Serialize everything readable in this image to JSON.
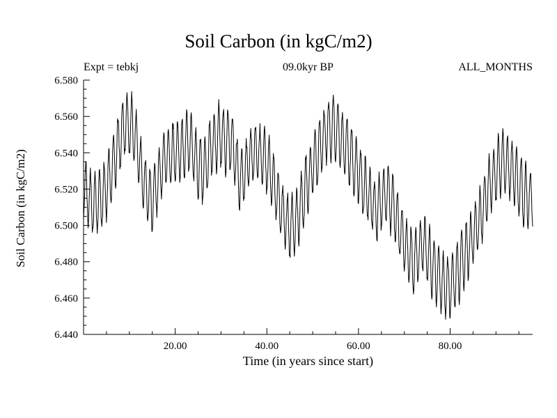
{
  "page": {
    "background": "#ffffff",
    "foreground": "#000000"
  },
  "chart_data": {
    "type": "line",
    "title": "Soil Carbon (in kgC/m2)",
    "annotations": {
      "left": "Expt = tebkj",
      "center": "09.0kyr BP",
      "right": "ALL_MONTHS"
    },
    "xlabel": "Time (in years since start)",
    "ylabel": "Soil Carbon (in kgC/m2)",
    "xlim": [
      0,
      98
    ],
    "ylim": [
      6.44,
      6.58
    ],
    "x_ticks": {
      "values": [
        20,
        40,
        60,
        80
      ],
      "labels": [
        "20.00",
        "40.00",
        "60.00",
        "80.00"
      ],
      "minor_step": 5
    },
    "y_ticks": {
      "values": [
        6.44,
        6.46,
        6.48,
        6.5,
        6.52,
        6.54,
        6.56,
        6.58
      ],
      "labels": [
        "6.440",
        "6.460",
        "6.480",
        "6.500",
        "6.520",
        "6.540",
        "6.560",
        "6.580"
      ],
      "minor_step": 0.005
    },
    "grid": false,
    "legend": "none",
    "line_color": "#000000",
    "series": {
      "name": "soil-carbon-monthly",
      "samples_per_year": 12,
      "seasonal_amplitude": 0.0168,
      "amplitude_jitter": 0.17,
      "noise_amplitude": 0.003,
      "envelope": {
        "t": [
          0,
          2,
          4,
          6,
          8,
          9,
          10,
          11,
          12,
          13,
          14,
          15,
          16,
          17,
          18,
          20,
          22,
          23,
          24,
          25,
          26,
          27,
          28,
          29,
          30,
          31,
          32,
          33,
          34,
          35,
          36,
          37,
          38,
          39,
          40,
          41,
          42,
          43,
          44,
          45,
          46,
          47,
          48,
          49,
          50,
          51,
          52,
          53,
          54,
          55,
          56,
          57,
          58,
          59,
          60,
          61,
          62,
          63,
          64,
          65,
          66,
          67,
          68,
          69,
          70,
          71,
          72,
          73,
          74,
          75,
          76,
          77,
          78,
          79,
          80,
          81,
          82,
          83,
          84,
          85,
          86,
          87,
          88,
          89,
          90,
          91,
          92,
          93,
          94,
          95,
          96,
          97,
          98
        ],
        "v": [
          6.52,
          6.512,
          6.515,
          6.528,
          6.548,
          6.555,
          6.556,
          6.552,
          6.54,
          6.525,
          6.517,
          6.512,
          6.522,
          6.532,
          6.538,
          6.54,
          6.543,
          6.546,
          6.54,
          6.532,
          6.529,
          6.536,
          6.544,
          6.548,
          6.55,
          6.546,
          6.548,
          6.54,
          6.524,
          6.528,
          6.536,
          6.54,
          6.54,
          6.537,
          6.534,
          6.528,
          6.518,
          6.51,
          6.503,
          6.5,
          6.5,
          6.506,
          6.516,
          6.524,
          6.532,
          6.54,
          6.546,
          6.551,
          6.554,
          6.553,
          6.548,
          6.545,
          6.54,
          6.534,
          6.529,
          6.522,
          6.518,
          6.512,
          6.508,
          6.514,
          6.518,
          6.514,
          6.508,
          6.498,
          6.49,
          6.484,
          6.479,
          6.484,
          6.49,
          6.485,
          6.478,
          6.474,
          6.47,
          6.466,
          6.466,
          6.47,
          6.476,
          6.482,
          6.488,
          6.494,
          6.5,
          6.508,
          6.518,
          6.524,
          6.53,
          6.534,
          6.536,
          6.532,
          6.528,
          6.522,
          6.518,
          6.514,
          6.516
        ]
      }
    }
  }
}
